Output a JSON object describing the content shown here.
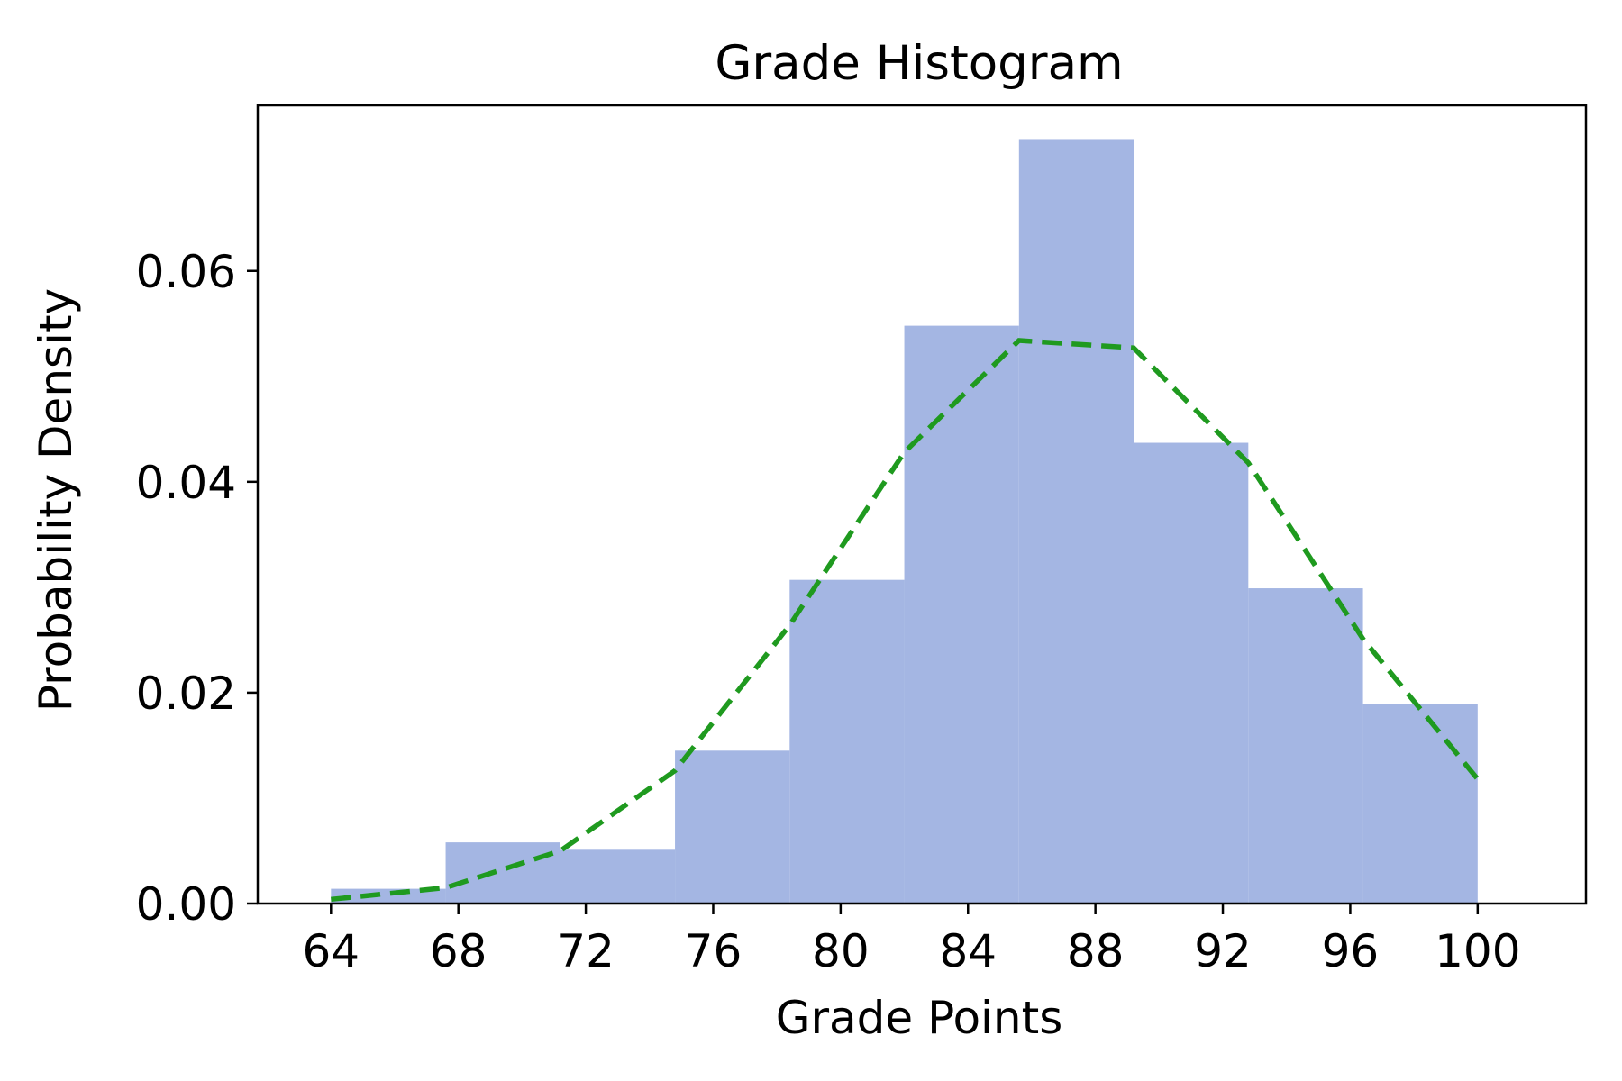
{
  "chart_data": {
    "type": "bar",
    "title": "Grade Histogram",
    "xlabel": "Grade Points",
    "ylabel": "Probability Density",
    "xlim": [
      61.7,
      103.4
    ],
    "ylim": [
      0,
      0.0757
    ],
    "xticks": [
      64,
      68,
      72,
      76,
      80,
      84,
      88,
      92,
      96,
      100
    ],
    "xtick_labels": [
      "64",
      "68",
      "72",
      "76",
      "80",
      "84",
      "88",
      "92",
      "96",
      "100"
    ],
    "yticks": [
      0,
      0.02,
      0.04,
      0.06
    ],
    "ytick_labels": [
      "0.00",
      "0.02",
      "0.04",
      "0.06"
    ],
    "grid": false,
    "histogram": {
      "bin_edges": [
        64,
        67.6,
        71.2,
        74.8,
        78.4,
        82.0,
        85.6,
        89.2,
        92.8,
        96.4,
        100
      ],
      "values": [
        0.0014,
        0.0058,
        0.0051,
        0.0145,
        0.0307,
        0.0548,
        0.0725,
        0.0437,
        0.0299,
        0.0189
      ],
      "color": "#a4b6e3"
    },
    "density_curve": {
      "x": [
        64,
        67.6,
        71.2,
        74.8,
        78.4,
        82.0,
        85.6,
        89.2,
        92.8,
        96.4,
        100
      ],
      "y": [
        0.0004,
        0.0015,
        0.005,
        0.0126,
        0.0264,
        0.0428,
        0.0534,
        0.0527,
        0.0418,
        0.0251,
        0.0118
      ],
      "color": "#1f9a1f",
      "style": "dashed"
    }
  }
}
